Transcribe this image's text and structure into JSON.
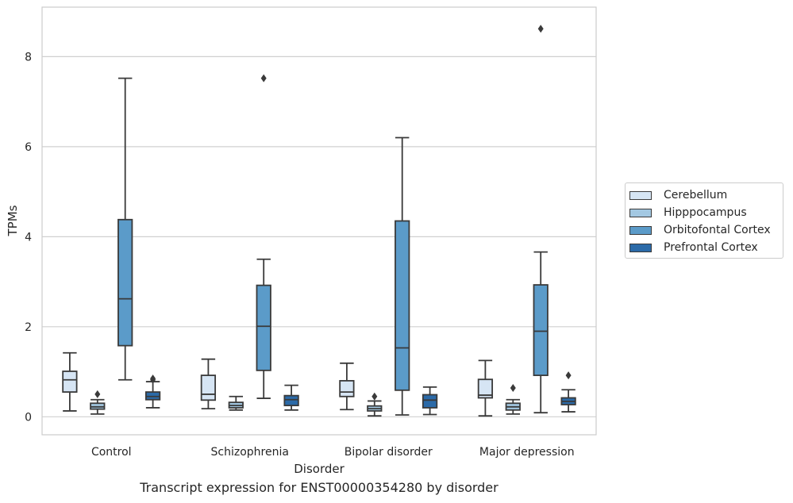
{
  "caption": "Transcript expression for ENST00000354280 by disorder",
  "chart_data": {
    "type": "box",
    "title": "",
    "xlabel": "Disorder",
    "ylabel": "TPMs",
    "ylim": [
      -0.4,
      9.1
    ],
    "yticks": [
      0,
      2,
      4,
      6,
      8
    ],
    "grid": "horizontal",
    "legend_position": "right",
    "categories": [
      "Control",
      "Schizophrenia",
      "Bipolar disorder",
      "Major depression"
    ],
    "series": [
      {
        "name": "Cerebellum",
        "color": "#d6e5f4",
        "boxes": [
          {
            "whislo": 0.13,
            "q1": 0.55,
            "med": 0.82,
            "q3": 1.01,
            "whishi": 1.42,
            "fliers": []
          },
          {
            "whislo": 0.18,
            "q1": 0.37,
            "med": 0.5,
            "q3": 0.92,
            "whishi": 1.28,
            "fliers": []
          },
          {
            "whislo": 0.16,
            "q1": 0.45,
            "med": 0.55,
            "q3": 0.8,
            "whishi": 1.19,
            "fliers": []
          },
          {
            "whislo": 0.02,
            "q1": 0.42,
            "med": 0.48,
            "q3": 0.83,
            "whishi": 1.25,
            "fliers": []
          }
        ]
      },
      {
        "name": "Hipppocampus",
        "color": "#a3c8e2",
        "boxes": [
          {
            "whislo": 0.06,
            "q1": 0.17,
            "med": 0.22,
            "q3": 0.3,
            "whishi": 0.38,
            "fliers": [
              0.5
            ]
          },
          {
            "whislo": 0.15,
            "q1": 0.2,
            "med": 0.25,
            "q3": 0.32,
            "whishi": 0.45,
            "fliers": []
          },
          {
            "whislo": 0.02,
            "q1": 0.13,
            "med": 0.18,
            "q3": 0.24,
            "whishi": 0.35,
            "fliers": [
              0.45
            ]
          },
          {
            "whislo": 0.06,
            "q1": 0.15,
            "med": 0.22,
            "q3": 0.3,
            "whishi": 0.38,
            "fliers": [
              0.64
            ]
          }
        ]
      },
      {
        "name": "Orbitofontal Cortex",
        "color": "#5b9bc9",
        "boxes": [
          {
            "whislo": 0.82,
            "q1": 1.58,
            "med": 2.62,
            "q3": 4.38,
            "whishi": 7.52,
            "fliers": []
          },
          {
            "whislo": 0.41,
            "q1": 1.03,
            "med": 2.01,
            "q3": 2.92,
            "whishi": 3.5,
            "fliers": [
              7.52
            ]
          },
          {
            "whislo": 0.04,
            "q1": 0.59,
            "med": 1.53,
            "q3": 4.35,
            "whishi": 6.2,
            "fliers": []
          },
          {
            "whislo": 0.09,
            "q1": 0.92,
            "med": 1.9,
            "q3": 2.93,
            "whishi": 3.66,
            "fliers": [
              8.62
            ]
          }
        ]
      },
      {
        "name": "Prefrontal Cortex",
        "color": "#2b6aa8",
        "boxes": [
          {
            "whislo": 0.2,
            "q1": 0.38,
            "med": 0.45,
            "q3": 0.55,
            "whishi": 0.78,
            "fliers": [
              0.82,
              0.85
            ]
          },
          {
            "whislo": 0.15,
            "q1": 0.25,
            "med": 0.38,
            "q3": 0.47,
            "whishi": 0.7,
            "fliers": []
          },
          {
            "whislo": 0.05,
            "q1": 0.2,
            "med": 0.37,
            "q3": 0.49,
            "whishi": 0.66,
            "fliers": []
          },
          {
            "whislo": 0.11,
            "q1": 0.27,
            "med": 0.34,
            "q3": 0.42,
            "whishi": 0.6,
            "fliers": [
              0.92
            ]
          }
        ]
      }
    ]
  }
}
